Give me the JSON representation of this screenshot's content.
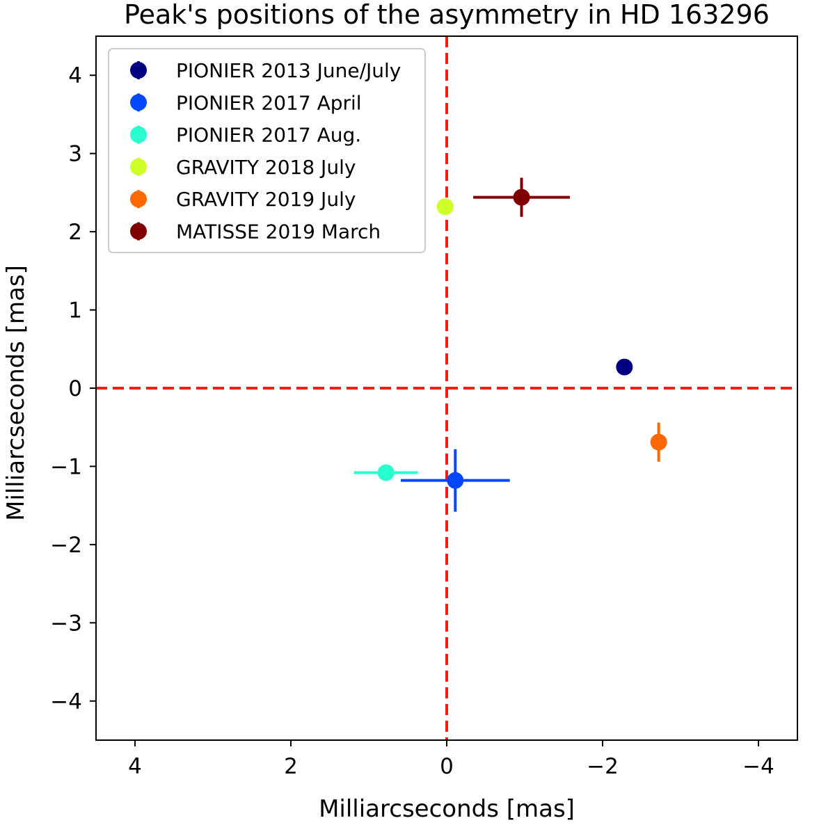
{
  "chart_data": {
    "type": "scatter",
    "title": "Peak's positions of the asymmetry in HD 163296",
    "xlabel": "Milliarcseconds [mas]",
    "ylabel": "Milliarcseconds [mas]",
    "xlim": [
      4.5,
      -4.5
    ],
    "ylim": [
      -4.5,
      4.5
    ],
    "x_inverted": true,
    "xticks": [
      4,
      2,
      0,
      -2,
      -4
    ],
    "yticks": [
      4,
      3,
      2,
      1,
      0,
      -1,
      -2,
      -3,
      -4
    ],
    "xtick_labels": [
      "4",
      "2",
      "0",
      "−2",
      "−4"
    ],
    "ytick_labels": [
      "4",
      "3",
      "2",
      "1",
      "0",
      "−1",
      "−2",
      "−3",
      "−4"
    ],
    "grid": false,
    "legend_position": "top-left",
    "reference_lines": [
      {
        "orientation": "vertical",
        "value": 0,
        "style": "dashed",
        "color": "#ff1a1a"
      },
      {
        "orientation": "horizontal",
        "value": 0,
        "style": "dashed",
        "color": "#ff1a1a"
      }
    ],
    "series": [
      {
        "name": "PIONIER 2013 June/July",
        "color": "#000080",
        "x": -2.28,
        "y": 0.27,
        "xerr": 0.0,
        "yerr": 0.0
      },
      {
        "name": "PIONIER 2017 April",
        "color": "#0048ff",
        "x": -0.11,
        "y": -1.18,
        "xerr": 0.7,
        "yerr": 0.4
      },
      {
        "name": "PIONIER 2017 Aug.",
        "color": "#29ffce",
        "x": 0.78,
        "y": -1.08,
        "xerr": 0.41,
        "yerr": 0.0
      },
      {
        "name": "GRAVITY 2018 July",
        "color": "#ceff29",
        "x": 0.02,
        "y": 2.32,
        "xerr": 0.1,
        "yerr": 0.08
      },
      {
        "name": "GRAVITY 2019 July",
        "color": "#ff6800",
        "x": -2.72,
        "y": -0.69,
        "xerr": 0.0,
        "yerr": 0.25
      },
      {
        "name": "MATISSE 2019 March",
        "color": "#800000",
        "x": -0.96,
        "y": 2.44,
        "xerr": 0.62,
        "yerr": 0.25
      }
    ]
  }
}
